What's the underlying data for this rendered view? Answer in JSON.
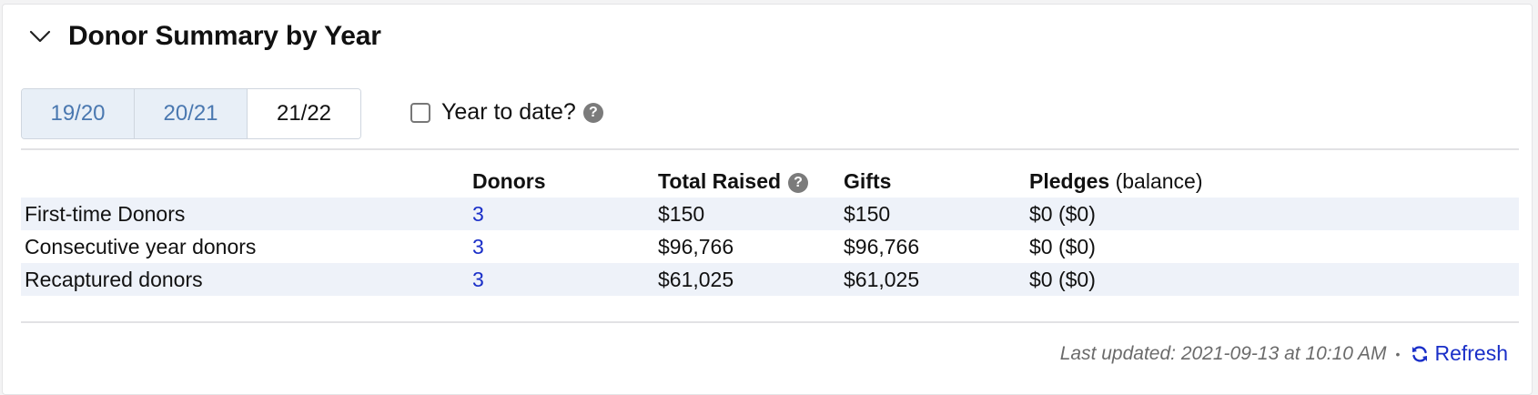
{
  "panel": {
    "title": "Donor Summary by Year",
    "collapse_icon": "chevron-down-icon"
  },
  "year_tabs": [
    {
      "label": "19/20",
      "active": false
    },
    {
      "label": "20/21",
      "active": false
    },
    {
      "label": "21/22",
      "active": true
    }
  ],
  "year_to_date": {
    "label": "Year to date?",
    "checked": false,
    "help_icon": "question-circle-icon"
  },
  "table": {
    "headers": {
      "category": "",
      "donors": "Donors",
      "total_raised": "Total Raised",
      "gifts": "Gifts",
      "pledges": "Pledges",
      "pledges_suffix": "(balance)"
    },
    "rows": [
      {
        "category": "First-time Donors",
        "donors": "3",
        "total_raised": "$150",
        "gifts": "$150",
        "pledges": "$0 ($0)"
      },
      {
        "category": "Consecutive year donors",
        "donors": "3",
        "total_raised": "$96,766",
        "gifts": "$96,766",
        "pledges": "$0 ($0)"
      },
      {
        "category": "Recaptured donors",
        "donors": "3",
        "total_raised": "$61,025",
        "gifts": "$61,025",
        "pledges": "$0 ($0)"
      }
    ]
  },
  "footer": {
    "last_updated": "Last updated: 2021-09-13 at 10:10 AM",
    "separator": "•",
    "refresh_label": "Refresh",
    "refresh_icon": "refresh-icon"
  },
  "colors": {
    "link": "#1a2fc8",
    "tab_inactive_bg": "#e8eff7",
    "tab_inactive_text": "#4a78b0",
    "row_shade": "#eef2f9"
  }
}
